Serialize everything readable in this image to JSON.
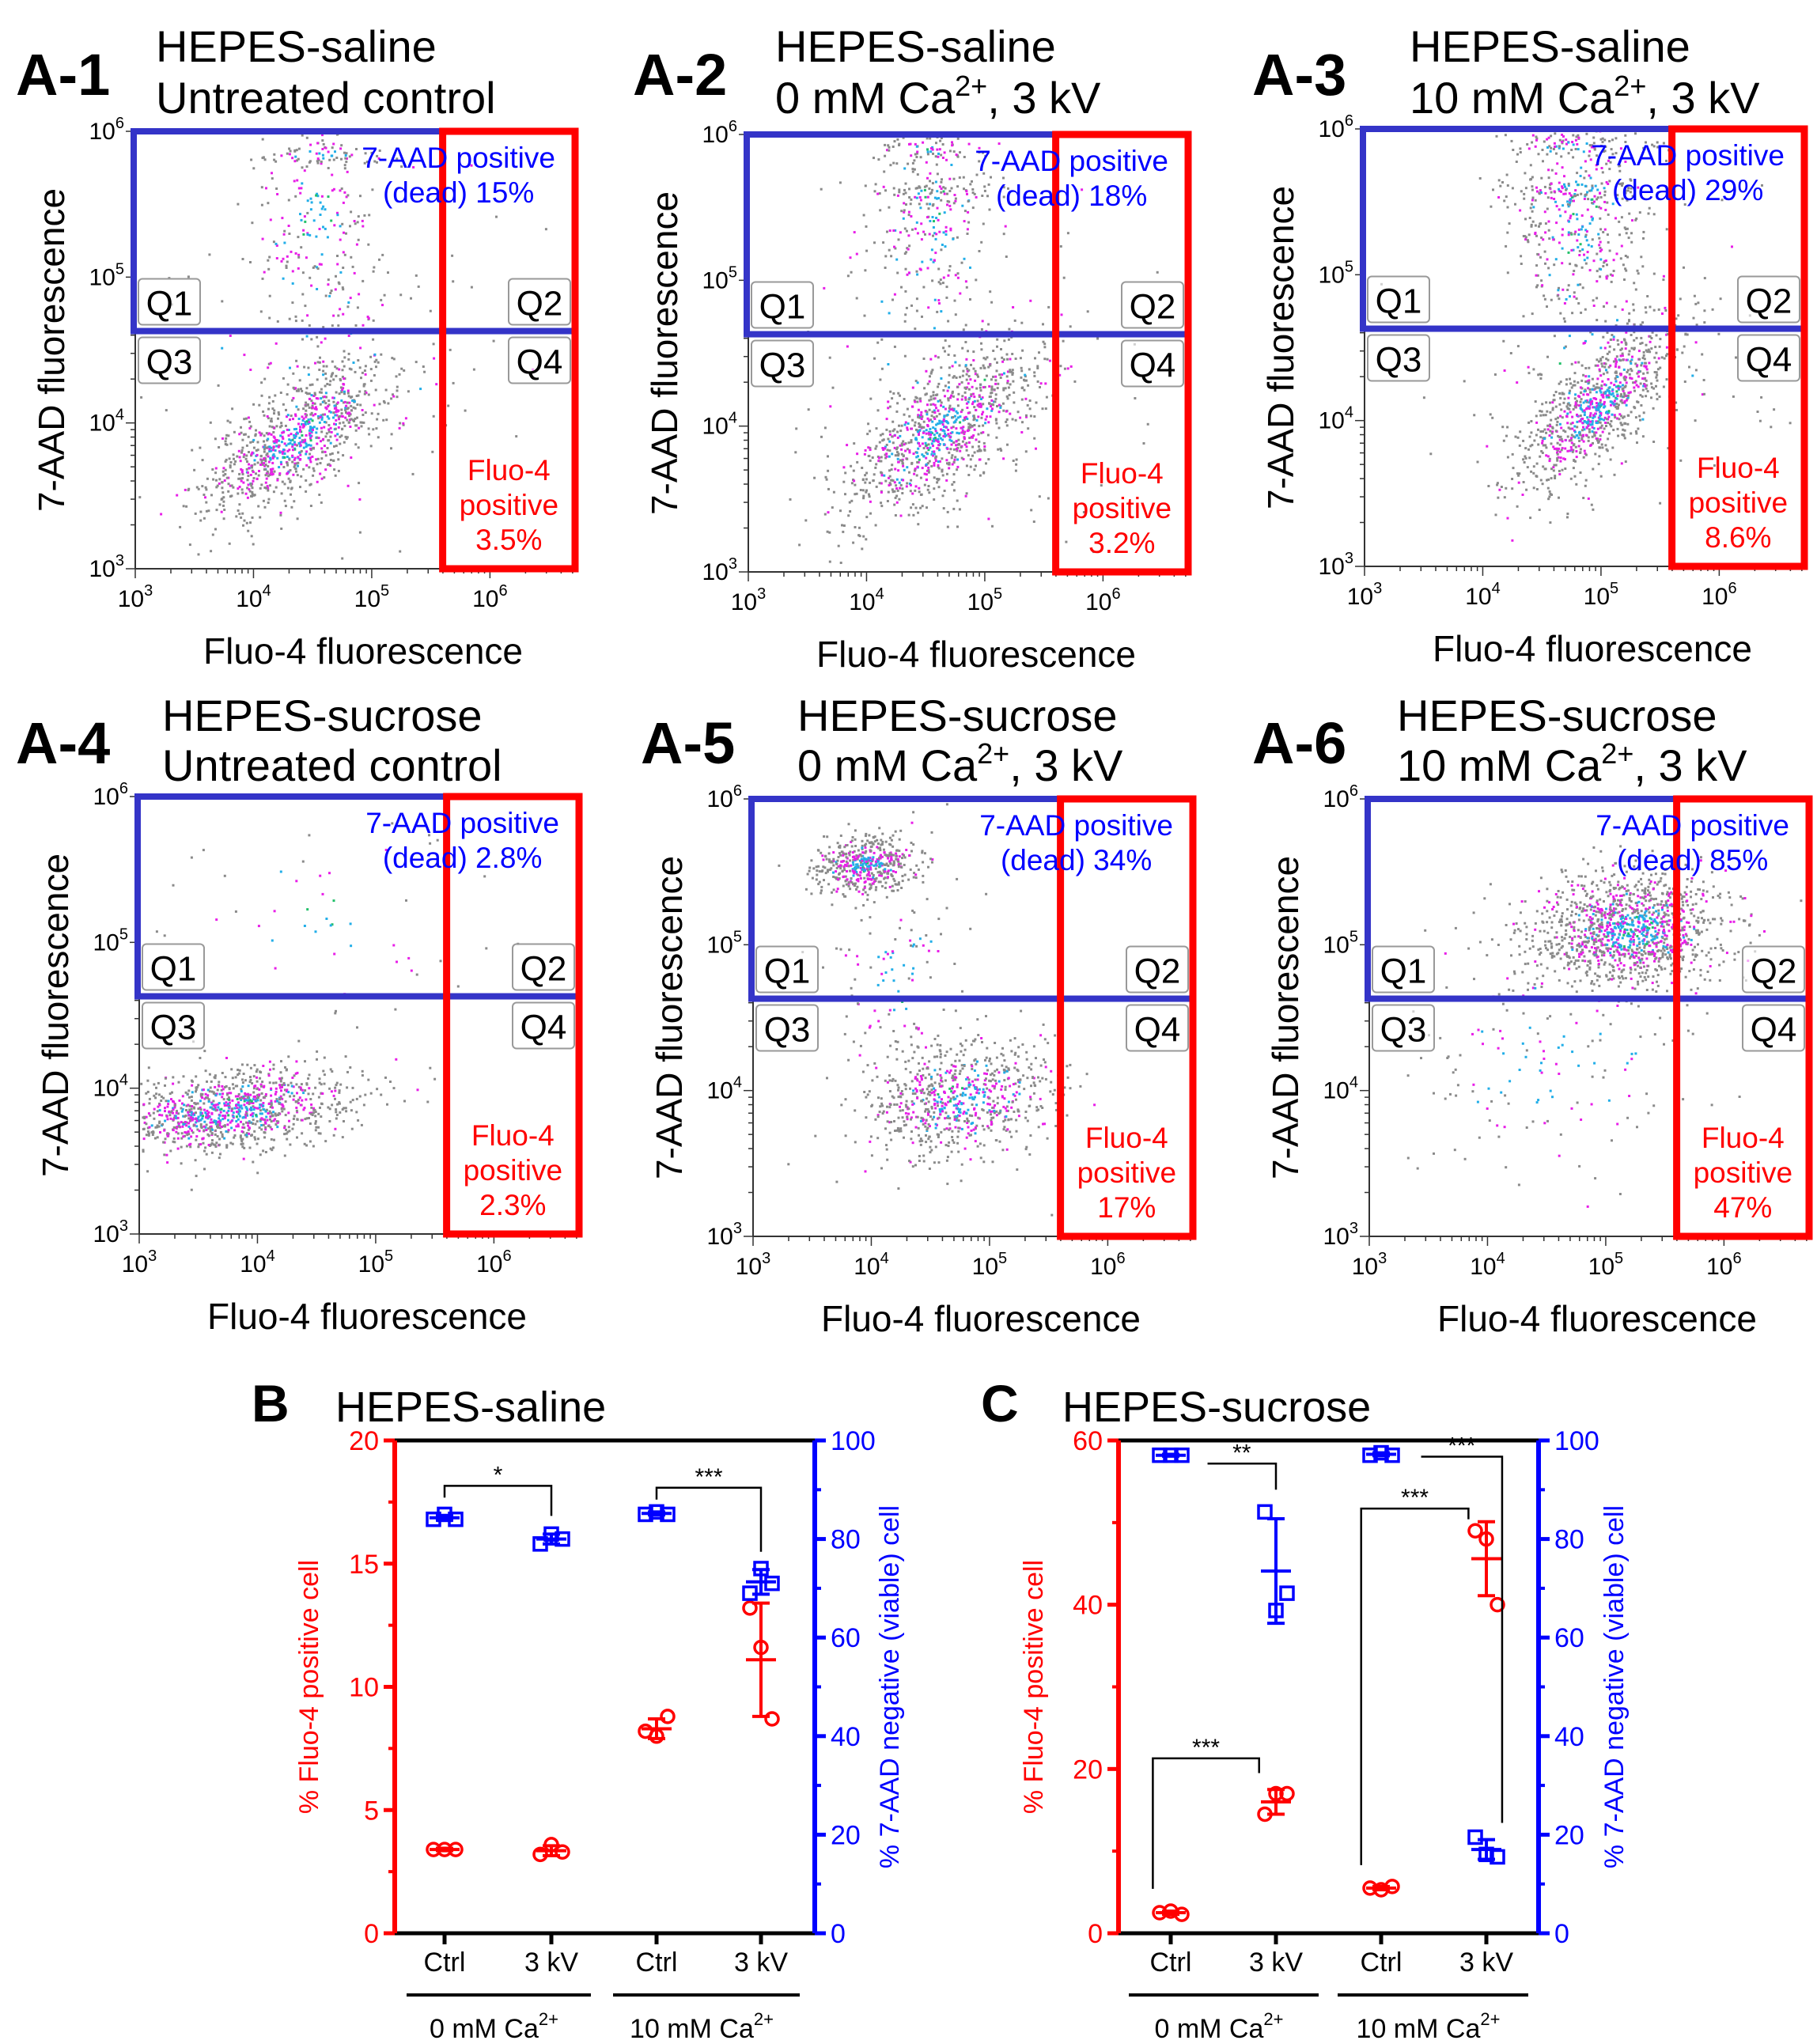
{
  "colors": {
    "gate_blue": "#3434c8",
    "gate_red": "#ff0000",
    "text_blue": "#0000ff",
    "text_red": "#ff0000",
    "dot_grey": "#8a8a8a",
    "dot_magenta": "#e81ee8",
    "dot_cyan": "#22aee8",
    "dot_green": "#22c06a",
    "axis_black": "#000000"
  },
  "chart_data": [
    {
      "type": "scatter",
      "panel_label": "A-1",
      "title": "HEPES-saline",
      "subtitle": {
        "text": "Untreated control",
        "sup": "",
        "after": ""
      },
      "xlabel": "Fluo-4 fluorescence",
      "ylabel": "7-AAD fluorescence",
      "x_scale": "log",
      "y_scale": "log",
      "tick_base": "10",
      "xlim_log10": [
        3,
        6.72
      ],
      "ylim_log10": [
        3,
        6
      ],
      "x_ticks": [
        "3",
        "4",
        "5",
        "6"
      ],
      "y_ticks": [
        "3",
        "4",
        "5",
        "6"
      ],
      "gates": {
        "x_threshold_log10": 5.6,
        "y_threshold_log10": 4.63
      },
      "quadrants": [
        "Q1",
        "Q2",
        "Q3",
        "Q4"
      ],
      "dead_annotation": [
        "7-AAD positive",
        "(dead) 15%"
      ],
      "fluo_annotation": [
        "Fluo-4",
        "positive",
        "3.5%"
      ],
      "dead_percent": 15,
      "fluo_percent": 3.5,
      "populations": [
        {
          "cx": 4.35,
          "cy": 3.9,
          "sx": 0.42,
          "sy": 0.28,
          "rho": 0.75,
          "n": 900
        },
        {
          "cx": 4.55,
          "cy": 5.35,
          "sx": 0.3,
          "sy": 0.45,
          "rho": 0,
          "n": 220
        },
        {
          "cx": 4.55,
          "cy": 5.85,
          "sx": 0.25,
          "sy": 0.06,
          "rho": 0,
          "n": 60
        },
        {
          "cx": 4.6,
          "cy": 4.3,
          "sx": 0.8,
          "sy": 0.6,
          "rho": 0,
          "n": 120
        }
      ]
    },
    {
      "type": "scatter",
      "panel_label": "A-2",
      "title": "HEPES-saline",
      "subtitle": {
        "text": "0 mM Ca",
        "sup": "2+",
        "after": ",  3 kV"
      },
      "xlabel": "Fluo-4 fluorescence",
      "ylabel": "7-AAD fluorescence",
      "x_scale": "log",
      "y_scale": "log",
      "tick_base": "10",
      "xlim_log10": [
        3,
        6.72
      ],
      "ylim_log10": [
        3,
        6
      ],
      "x_ticks": [
        "3",
        "4",
        "5",
        "6"
      ],
      "y_ticks": [
        "3",
        "4",
        "5",
        "6"
      ],
      "gates": {
        "x_threshold_log10": 5.6,
        "y_threshold_log10": 4.63
      },
      "quadrants": [
        "Q1",
        "Q2",
        "Q3",
        "Q4"
      ],
      "dead_annotation": [
        "7-AAD positive",
        "(dead) 18%"
      ],
      "fluo_annotation": [
        "Fluo-4",
        "positive",
        "3.2%"
      ],
      "dead_percent": 18,
      "fluo_percent": 3.2,
      "populations": [
        {
          "cx": 4.6,
          "cy": 3.95,
          "sx": 0.42,
          "sy": 0.3,
          "rho": 0.7,
          "n": 950
        },
        {
          "cx": 4.55,
          "cy": 5.35,
          "sx": 0.28,
          "sy": 0.45,
          "rho": 0,
          "n": 260
        },
        {
          "cx": 4.55,
          "cy": 5.6,
          "sx": 0.25,
          "sy": 0.05,
          "rho": 0,
          "n": 60
        },
        {
          "cx": 4.55,
          "cy": 5.9,
          "sx": 0.25,
          "sy": 0.05,
          "rho": 0,
          "n": 60
        },
        {
          "cx": 4.6,
          "cy": 4.3,
          "sx": 0.8,
          "sy": 0.6,
          "rho": 0,
          "n": 120
        }
      ]
    },
    {
      "type": "scatter",
      "panel_label": "A-3",
      "title": "HEPES-saline",
      "subtitle": {
        "text": "10 mM Ca",
        "sup": "2+",
        "after": ",  3 kV"
      },
      "xlabel": "Fluo-4 fluorescence",
      "ylabel": "7-AAD fluorescence",
      "x_scale": "log",
      "y_scale": "log",
      "tick_base": "10",
      "xlim_log10": [
        3,
        6.72
      ],
      "ylim_log10": [
        3,
        6
      ],
      "x_ticks": [
        "3",
        "4",
        "5",
        "6"
      ],
      "y_ticks": [
        "3",
        "4",
        "5",
        "6"
      ],
      "gates": {
        "x_threshold_log10": 5.6,
        "y_threshold_log10": 4.63
      },
      "quadrants": [
        "Q1",
        "Q2",
        "Q3",
        "Q4"
      ],
      "dead_annotation": [
        "7-AAD positive",
        "(dead) 29%"
      ],
      "fluo_annotation": [
        "Fluo-4",
        "positive",
        "8.6%"
      ],
      "dead_percent": 29,
      "fluo_percent": 8.6,
      "populations": [
        {
          "cx": 4.95,
          "cy": 4.1,
          "sx": 0.35,
          "sy": 0.3,
          "rho": 0.75,
          "n": 900
        },
        {
          "cx": 4.8,
          "cy": 5.35,
          "sx": 0.3,
          "sy": 0.45,
          "rho": 0,
          "n": 380
        },
        {
          "cx": 4.8,
          "cy": 5.6,
          "sx": 0.3,
          "sy": 0.05,
          "rho": 0,
          "n": 80
        },
        {
          "cx": 4.7,
          "cy": 5.9,
          "sx": 0.3,
          "sy": 0.05,
          "rho": 0,
          "n": 80
        },
        {
          "cx": 5.0,
          "cy": 4.4,
          "sx": 0.7,
          "sy": 0.6,
          "rho": 0,
          "n": 120
        }
      ]
    },
    {
      "type": "scatter",
      "panel_label": "A-4",
      "title": "HEPES-sucrose",
      "subtitle": {
        "text": "Untreated control",
        "sup": "",
        "after": ""
      },
      "xlabel": "Fluo-4 fluorescence",
      "ylabel": "7-AAD fluorescence",
      "x_scale": "log",
      "y_scale": "log",
      "tick_base": "10",
      "xlim_log10": [
        3,
        6.72
      ],
      "ylim_log10": [
        3,
        6
      ],
      "x_ticks": [
        "3",
        "4",
        "5",
        "6"
      ],
      "y_ticks": [
        "3",
        "4",
        "5",
        "6"
      ],
      "gates": {
        "x_threshold_log10": 5.6,
        "y_threshold_log10": 4.63
      },
      "quadrants": [
        "Q1",
        "Q2",
        "Q3",
        "Q4"
      ],
      "dead_annotation": [
        "7-AAD positive",
        "(dead) 2.8%"
      ],
      "fluo_annotation": [
        "Fluo-4",
        "positive",
        "2.3%"
      ],
      "dead_percent": 2.8,
      "fluo_percent": 2.3,
      "populations": [
        {
          "cx": 3.75,
          "cy": 3.85,
          "sx": 0.55,
          "sy": 0.15,
          "rho": 0.35,
          "n": 1100
        },
        {
          "cx": 4.5,
          "cy": 5.2,
          "sx": 0.8,
          "sy": 0.5,
          "rho": 0,
          "n": 60
        }
      ]
    },
    {
      "type": "scatter",
      "panel_label": "A-5",
      "title": "HEPES-sucrose",
      "subtitle": {
        "text": "0 mM Ca",
        "sup": "2+",
        "after": ",  3 kV"
      },
      "xlabel": "Fluo-4 fluorescence",
      "ylabel": "7-AAD fluorescence",
      "x_scale": "log",
      "y_scale": "log",
      "tick_base": "10",
      "xlim_log10": [
        3,
        6.72
      ],
      "ylim_log10": [
        3,
        6
      ],
      "x_ticks": [
        "3",
        "4",
        "5",
        "6"
      ],
      "y_ticks": [
        "3",
        "4",
        "5",
        "6"
      ],
      "gates": {
        "x_threshold_log10": 5.6,
        "y_threshold_log10": 4.63
      },
      "quadrants": [
        "Q1",
        "Q2",
        "Q3",
        "Q4"
      ],
      "dead_annotation": [
        "7-AAD positive",
        "(dead) 34%"
      ],
      "fluo_annotation": [
        "Fluo-4",
        "positive",
        "17%"
      ],
      "dead_percent": 34,
      "fluo_percent": 17,
      "populations": [
        {
          "cx": 4.75,
          "cy": 3.95,
          "sx": 0.4,
          "sy": 0.2,
          "rho": 0.2,
          "n": 750
        },
        {
          "cx": 3.95,
          "cy": 5.55,
          "sx": 0.22,
          "sy": 0.1,
          "rho": 0.2,
          "n": 500
        },
        {
          "cx": 4.2,
          "cy": 4.8,
          "sx": 0.3,
          "sy": 0.4,
          "rho": 0,
          "n": 120
        }
      ]
    },
    {
      "type": "scatter",
      "panel_label": "A-6",
      "title": "HEPES-sucrose",
      "subtitle": {
        "text": "10 mM Ca",
        "sup": "2+",
        "after": ",  3 kV"
      },
      "xlabel": "Fluo-4 fluorescence",
      "ylabel": "7-AAD fluorescence",
      "x_scale": "log",
      "y_scale": "log",
      "tick_base": "10",
      "xlim_log10": [
        3,
        6.72
      ],
      "ylim_log10": [
        3,
        6
      ],
      "x_ticks": [
        "3",
        "4",
        "5",
        "6"
      ],
      "y_ticks": [
        "3",
        "4",
        "5",
        "6"
      ],
      "gates": {
        "x_threshold_log10": 5.6,
        "y_threshold_log10": 4.63
      },
      "quadrants": [
        "Q1",
        "Q2",
        "Q3",
        "Q4"
      ],
      "dead_annotation": [
        "7-AAD positive",
        "(dead) 85%"
      ],
      "fluo_annotation": [
        "Fluo-4",
        "positive",
        "47%"
      ],
      "dead_percent": 85,
      "fluo_percent": 47,
      "populations": [
        {
          "cx": 5.2,
          "cy": 5.1,
          "sx": 0.42,
          "sy": 0.2,
          "rho": 0.1,
          "n": 1300
        },
        {
          "cx": 4.5,
          "cy": 4.2,
          "sx": 0.6,
          "sy": 0.5,
          "rho": 0,
          "n": 150
        }
      ]
    },
    {
      "type": "dot_plot",
      "panel_label": "B",
      "title": "HEPES-saline",
      "categories": [
        "Ctrl",
        "3 kV",
        "Ctrl",
        "3 kV"
      ],
      "groups": [
        {
          "text": "0 mM Ca",
          "sup": "2+"
        },
        {
          "text": "10 mM Ca",
          "sup": "2+"
        }
      ],
      "left_axis": {
        "label": "% Fluo-4 positive cell",
        "ylim": [
          0,
          20
        ],
        "ticks": [
          "0",
          "5",
          "10",
          "15",
          "20"
        ]
      },
      "right_axis": {
        "label": "% 7-AAD negative (viable) cell",
        "ylim": [
          0,
          100
        ],
        "ticks": [
          "0",
          "20",
          "40",
          "60",
          "80",
          "100"
        ]
      },
      "series": [
        {
          "name": "% Fluo-4 positive cell",
          "axis": "left",
          "marker": "circle",
          "points": [
            [
              3.4,
              3.4,
              3.4
            ],
            [
              3.2,
              3.6,
              3.3
            ],
            [
              8.2,
              8.0,
              8.8
            ],
            [
              13.2,
              11.6,
              8.7
            ]
          ],
          "mean": [
            3.4,
            3.35,
            8.3,
            11.1
          ],
          "sd": [
            0.05,
            0.2,
            0.4,
            2.3
          ]
        },
        {
          "name": "% 7-AAD negative (viable) cell",
          "axis": "right",
          "marker": "square",
          "points": [
            [
              84,
              85,
              84
            ],
            [
              79,
              81,
              80
            ],
            [
              85,
              85.5,
              85
            ],
            [
              69,
              74,
              71
            ]
          ],
          "mean": [
            84.3,
            80,
            85.2,
            71.3
          ],
          "sd": [
            0.5,
            1,
            0.3,
            2.5
          ]
        }
      ],
      "significance": [
        {
          "label": "*",
          "axis": "right",
          "from": 0,
          "to": 1,
          "level": 90.8,
          "left_end": 88.4,
          "right_end": 84.7
        },
        {
          "label": "***",
          "axis": "right",
          "from": 2,
          "to": 3,
          "level": 90.4,
          "left_end": 88,
          "right_end": 77.4
        }
      ]
    },
    {
      "type": "dot_plot",
      "panel_label": "C",
      "title": "HEPES-sucrose",
      "categories": [
        "Ctrl",
        "3 kV",
        "Ctrl",
        "3 kV"
      ],
      "groups": [
        {
          "text": "0 mM Ca",
          "sup": "2+"
        },
        {
          "text": "10 mM Ca",
          "sup": "2+"
        }
      ],
      "left_axis": {
        "label": "% Fluo-4 positive cell",
        "ylim": [
          0,
          60
        ],
        "ticks": [
          "0",
          "20",
          "40",
          "60"
        ]
      },
      "right_axis": {
        "label": "% 7-AAD negative (viable) cell",
        "ylim": [
          0,
          100
        ],
        "ticks": [
          "0",
          "20",
          "40",
          "60",
          "80",
          "100"
        ]
      },
      "series": [
        {
          "name": "% Fluo-4 positive cell",
          "axis": "left",
          "marker": "circle",
          "points": [
            [
              2.5,
              2.7,
              2.3
            ],
            [
              14.5,
              17,
              17
            ],
            [
              5.5,
              5.3,
              5.7
            ],
            [
              49,
              48,
              40
            ]
          ],
          "mean": [
            2.5,
            16,
            5.5,
            45.6
          ],
          "sd": [
            0.2,
            1.5,
            0.2,
            4.5
          ]
        },
        {
          "name": "% 7-AAD negative (viable) cell",
          "axis": "right",
          "marker": "square",
          "points": [
            [
              97,
              97,
              97
            ],
            [
              85.5,
              65.5,
              69
            ],
            [
              97,
              97.5,
              97
            ],
            [
              19.5,
              16,
              15.5
            ]
          ],
          "mean": [
            97,
            73.5,
            97.2,
            17
          ],
          "sd": [
            0.2,
            10.6,
            0.3,
            2
          ]
        }
      ],
      "significance": [
        {
          "label": "**",
          "axis": "right",
          "from": 0.35,
          "to": 1,
          "level": 95.3,
          "left_end": 95.3,
          "right_end": 90
        },
        {
          "label": "***",
          "axis": "left",
          "from": -0.17,
          "to": 0.84,
          "level": 21.3,
          "left_end": 5.4,
          "right_end": 19.5
        },
        {
          "label": "***",
          "axis": "left",
          "from": 1.81,
          "to": 2.83,
          "level": 51.7,
          "left_end": 8.3,
          "right_end": 50.4
        },
        {
          "label": "***",
          "axis": "right",
          "from": 2.38,
          "to": 3.15,
          "level": 96.7,
          "left_end": 96.7,
          "right_end": 22.4
        }
      ]
    }
  ]
}
